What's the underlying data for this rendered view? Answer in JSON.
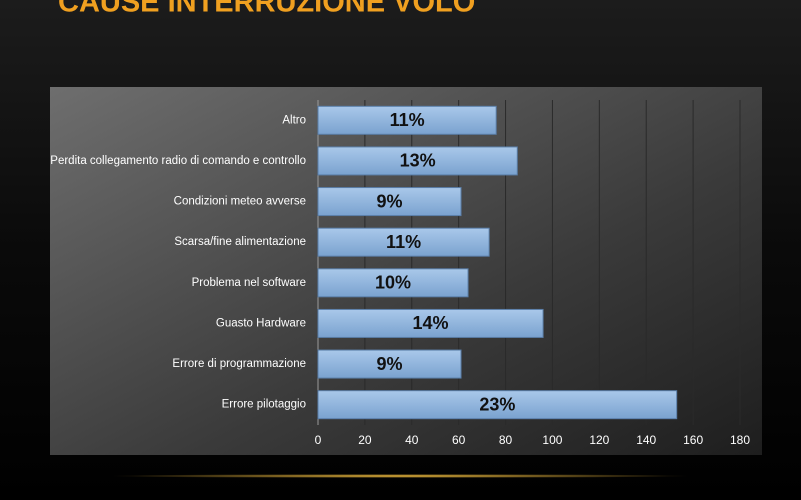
{
  "page_title": "CAUSE INTERRUZIONE VOLO",
  "chart_data": {
    "type": "hbar",
    "categories": [
      "Altro",
      "Perdita collegamento radio di comando e controllo",
      "Condizioni meteo avverse",
      "Scarsa/fine alimentazione",
      "Problema nel software",
      "Guasto Hardware",
      "Errore di programmazione",
      "Errore pilotaggio"
    ],
    "values": [
      76,
      85,
      61,
      73,
      64,
      96,
      61,
      153
    ],
    "value_labels": [
      "11%",
      "13%",
      "9%",
      "11%",
      "10%",
      "14%",
      "9%",
      "23%"
    ],
    "color": "#8db3dc",
    "xlim": [
      0,
      180
    ],
    "xticks": [
      0,
      20,
      40,
      60,
      80,
      100,
      120,
      140,
      160,
      180
    ],
    "grid": true
  }
}
